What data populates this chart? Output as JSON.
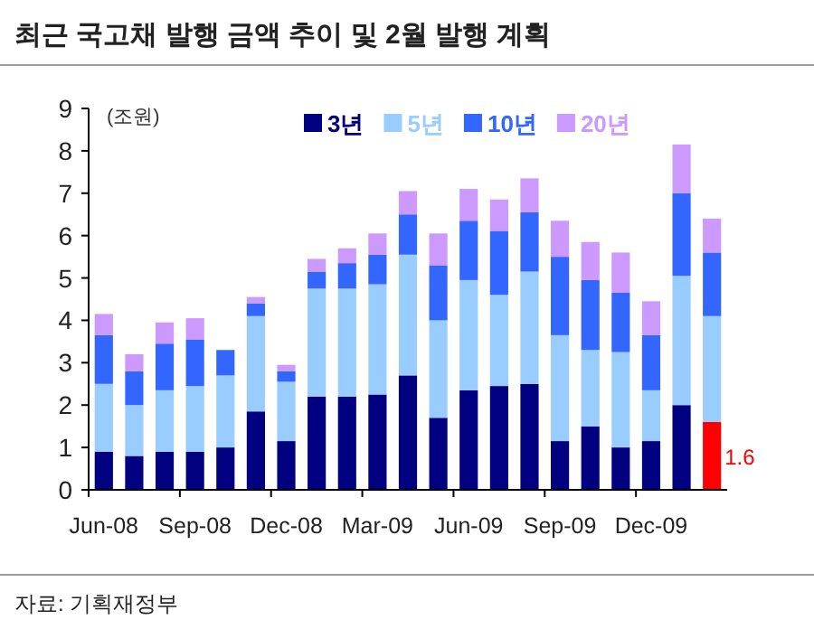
{
  "chart_data": {
    "type": "bar",
    "stacked": true,
    "title": "최근 국고채 발행 금액 추이 및 2월 발행 계획",
    "ylabel": "(조원)",
    "annotations": [
      "자료: 기획재정부"
    ],
    "categories": [
      "Jun-08",
      null,
      null,
      "Sep-08",
      null,
      null,
      "Dec-08",
      null,
      null,
      "Mar-09",
      null,
      null,
      "Jun-09",
      null,
      null,
      "Sep-09",
      null,
      null,
      "Dec-09",
      null,
      null
    ],
    "series": [
      {
        "name": "3년",
        "color": "#000080",
        "colors": [
          "#000080",
          "#000080",
          "#000080",
          "#000080",
          "#000080",
          "#000080",
          "#000080",
          "#000080",
          "#000080",
          "#000080",
          "#000080",
          "#000080",
          "#000080",
          "#000080",
          "#000080",
          "#000080",
          "#000080",
          "#000080",
          "#000080",
          "#000080",
          "#ff0000"
        ],
        "values": [
          0.9,
          0.8,
          0.9,
          0.9,
          1.0,
          1.85,
          1.15,
          2.2,
          2.2,
          2.25,
          2.7,
          1.7,
          2.35,
          2.45,
          2.5,
          1.15,
          1.5,
          1.0,
          1.15,
          2.0,
          1.6
        ],
        "value_labels": [
          null,
          null,
          null,
          null,
          null,
          null,
          null,
          null,
          null,
          null,
          null,
          null,
          null,
          null,
          null,
          null,
          null,
          null,
          null,
          null,
          "1.6"
        ]
      },
      {
        "name": "5년",
        "color": "#99ccff",
        "values": [
          1.6,
          1.2,
          1.45,
          1.55,
          1.7,
          2.25,
          1.4,
          2.55,
          2.55,
          2.6,
          2.85,
          2.3,
          2.6,
          2.15,
          2.65,
          2.5,
          1.8,
          2.25,
          1.2,
          3.05,
          2.5
        ]
      },
      {
        "name": "10년",
        "color": "#3366ff",
        "values": [
          1.15,
          0.8,
          1.1,
          1.1,
          0.6,
          0.3,
          0.25,
          0.4,
          0.6,
          0.7,
          0.95,
          1.3,
          1.4,
          1.5,
          1.4,
          1.85,
          1.65,
          1.4,
          1.3,
          1.95,
          1.5
        ]
      },
      {
        "name": "20년",
        "color": "#cc99ff",
        "values": [
          0.5,
          0.4,
          0.5,
          0.5,
          0,
          0.15,
          0.15,
          0.3,
          0.35,
          0.5,
          0.55,
          0.75,
          0.75,
          0.75,
          0.8,
          0.85,
          0.9,
          0.95,
          0.8,
          1.15,
          0.8
        ]
      }
    ],
    "ylim": [
      0,
      9
    ],
    "yticks": [
      0,
      1,
      2,
      3,
      4,
      5,
      6,
      7,
      8,
      9
    ],
    "legend": "top right"
  }
}
